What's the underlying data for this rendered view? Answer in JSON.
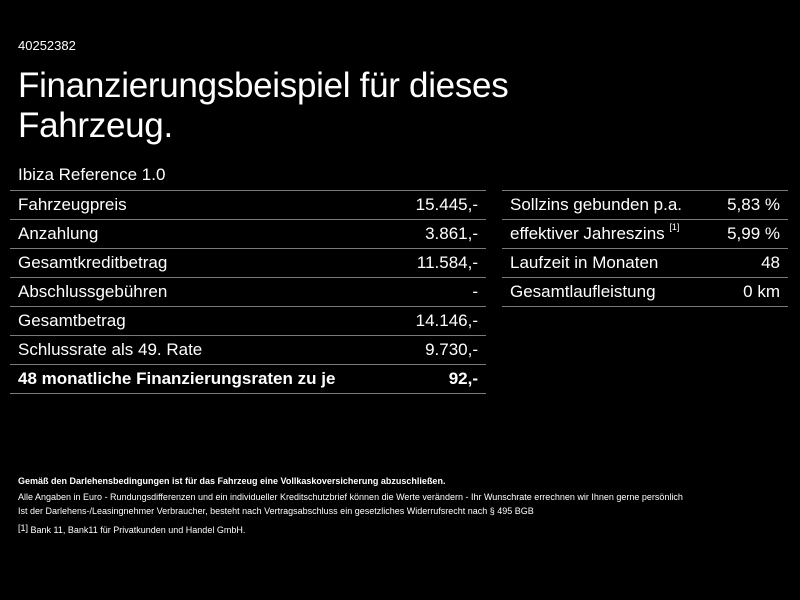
{
  "header": {
    "id": "40252382",
    "title_line1": "Finanzierungsbeispiel für dieses",
    "title_line2": "Fahrzeug.",
    "model": "Ibiza Reference 1.0"
  },
  "left_table": [
    {
      "label": "Fahrzeugpreis",
      "value": "15.445,-"
    },
    {
      "label": "Anzahlung",
      "value": "3.861,-"
    },
    {
      "label": "Gesamtkreditbetrag",
      "value": "11.584,-"
    },
    {
      "label": "Abschlussgebühren",
      "value": "-"
    },
    {
      "label": "Gesamtbetrag",
      "value": "14.146,-"
    },
    {
      "label": "Schlussrate als 49. Rate",
      "value": "9.730,-"
    },
    {
      "label": "48 monatliche Finanzierungsraten zu je",
      "value": "92,-"
    }
  ],
  "right_table": [
    {
      "label": "Sollzins gebunden p.a.",
      "sup": "",
      "value": "5,83 %"
    },
    {
      "label": "effektiver Jahreszins",
      "sup": "[1]",
      "value": "5,99 %"
    },
    {
      "label": "Laufzeit in Monaten",
      "sup": "",
      "value": "48"
    },
    {
      "label": "Gesamtlaufleistung",
      "sup": "",
      "value": "0 km"
    }
  ],
  "footer": {
    "note_bold": "Gemäß den Darlehensbedingungen ist für das Fahrzeug eine Vollkaskoversicherung abzuschließen.",
    "note_1": "Alle Angaben in Euro - Rundungsdifferenzen und ein individueller Kreditschutzbrief können die Werte verändern - Ihr Wunschrate errechnen wir Ihnen gerne persönlich",
    "note_2": "Ist der Darlehens-/Leasingnehmer Verbraucher, besteht nach Vertragsabschluss ein gesetzliches Widerrufsrecht nach § 495 BGB",
    "footnote_mark": "[1]",
    "footnote_text": "Bank 11, Bank11 für Privatkunden und Handel GmbH."
  }
}
